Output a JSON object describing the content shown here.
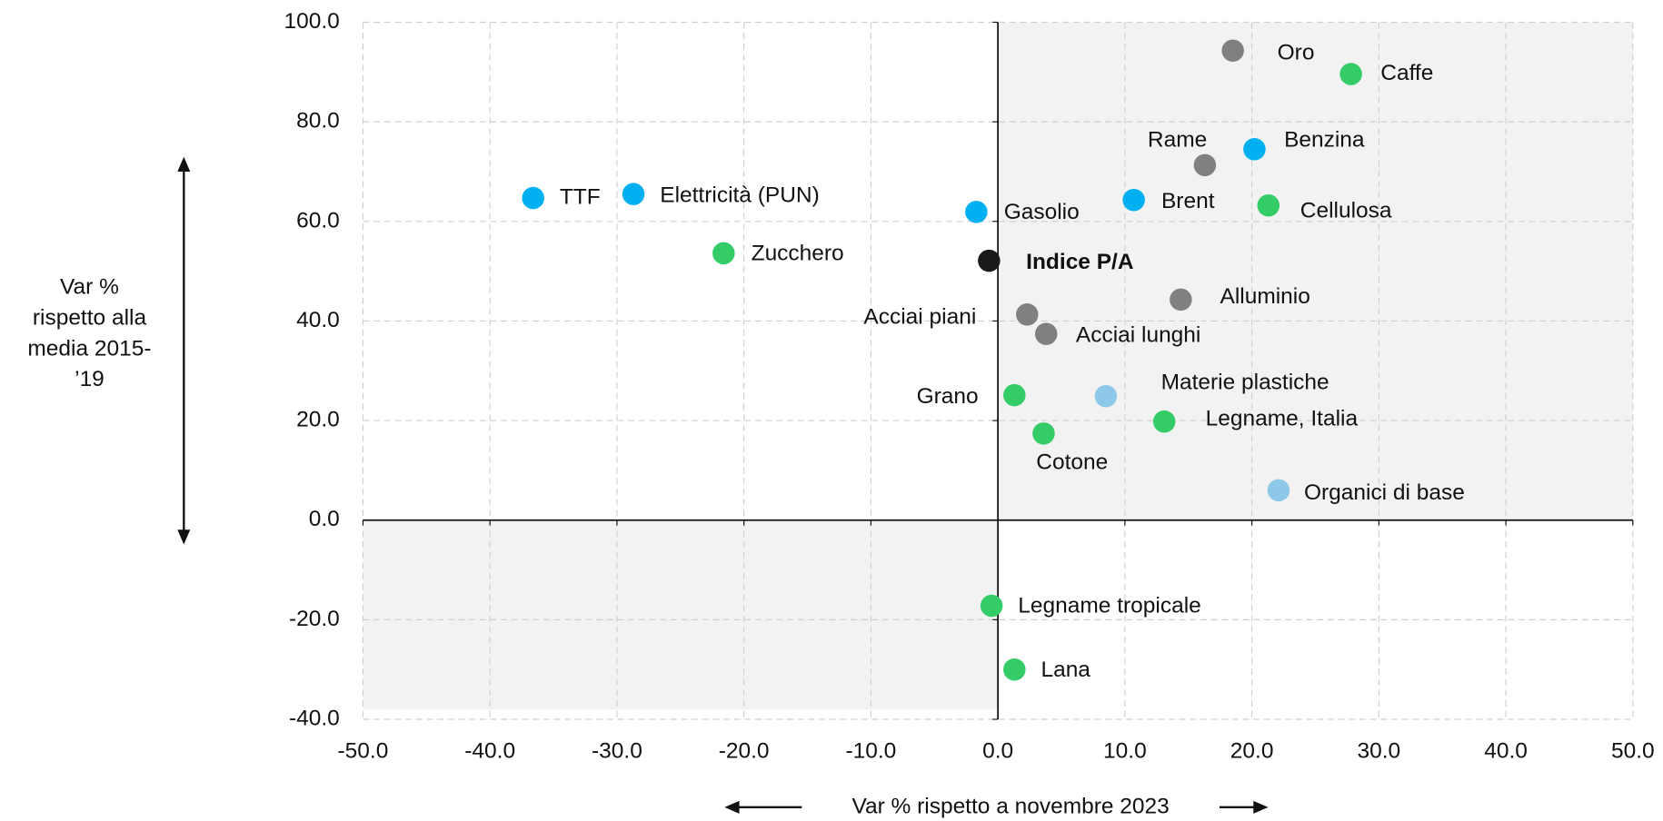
{
  "chart_data": {
    "type": "scatter",
    "xlabel": "Var % rispetto a novembre 2023",
    "ylabel": [
      "Var %",
      "rispetto alla",
      "media 2015-",
      "’19"
    ],
    "xlim": [
      -50,
      50
    ],
    "ylim": [
      -40,
      100
    ],
    "xticks": [
      {
        "value": -50,
        "label": "-50.0"
      },
      {
        "value": -40,
        "label": "-40.0"
      },
      {
        "value": -30,
        "label": "-30.0"
      },
      {
        "value": -20,
        "label": "-20.0"
      },
      {
        "value": -10,
        "label": "-10.0"
      },
      {
        "value": 0,
        "label": "0.0"
      },
      {
        "value": 10,
        "label": "10.0"
      },
      {
        "value": 20,
        "label": "20.0"
      },
      {
        "value": 30,
        "label": "30.0"
      },
      {
        "value": 40,
        "label": "40.0"
      },
      {
        "value": 50,
        "label": "50.0"
      }
    ],
    "yticks": [
      {
        "value": -40,
        "label": "-40.0"
      },
      {
        "value": -20,
        "label": "-20.0"
      },
      {
        "value": 0,
        "label": "0.0"
      },
      {
        "value": 20,
        "label": "20.0"
      },
      {
        "value": 40,
        "label": "40.0"
      },
      {
        "value": 60,
        "label": "60.0"
      },
      {
        "value": 80,
        "label": "80.0"
      },
      {
        "value": 100,
        "label": "100.0"
      }
    ],
    "grid": true,
    "series": [
      {
        "name": "Oro",
        "color": "#808080",
        "x": [
          18.5
        ],
        "values": [
          94.3
        ]
      },
      {
        "name": "Caffe",
        "color": "#33cc66",
        "x": [
          27.8
        ],
        "values": [
          89.6
        ]
      },
      {
        "name": "Rame",
        "color": "#808080",
        "x": [
          16.3
        ],
        "values": [
          71.3
        ]
      },
      {
        "name": "Benzina",
        "color": "#00b0f0",
        "x": [
          20.2
        ],
        "values": [
          74.5
        ]
      },
      {
        "name": "Brent",
        "color": "#00b0f0",
        "x": [
          10.7
        ],
        "values": [
          64.3
        ]
      },
      {
        "name": "Cellulosa",
        "color": "#33cc66",
        "x": [
          21.3
        ],
        "values": [
          63.2
        ]
      },
      {
        "name": "TTF",
        "color": "#00b0f0",
        "x": [
          -36.6
        ],
        "values": [
          64.7
        ]
      },
      {
        "name": "Elettricità (PUN)",
        "color": "#00b0f0",
        "x": [
          -28.7
        ],
        "values": [
          65.5
        ]
      },
      {
        "name": "Gasolio",
        "color": "#00b0f0",
        "x": [
          -1.7
        ],
        "values": [
          61.9
        ]
      },
      {
        "name": "Zucchero",
        "color": "#33cc66",
        "x": [
          -21.6
        ],
        "values": [
          53.6
        ]
      },
      {
        "name": "Indice P/A",
        "color": "#1a1a1a",
        "x": [
          -0.7
        ],
        "values": [
          52.1
        ]
      },
      {
        "name": "Alluminio",
        "color": "#808080",
        "x": [
          14.4
        ],
        "values": [
          44.3
        ]
      },
      {
        "name": "Acciai piani",
        "color": "#808080",
        "x": [
          2.3
        ],
        "values": [
          41.3
        ]
      },
      {
        "name": "Acciai lunghi",
        "color": "#808080",
        "x": [
          3.8
        ],
        "values": [
          37.4
        ]
      },
      {
        "name": "Grano",
        "color": "#33cc66",
        "x": [
          1.3
        ],
        "values": [
          25.1
        ]
      },
      {
        "name": "Materie plastiche",
        "color": "#8ec8e8",
        "x": [
          8.5
        ],
        "values": [
          24.9
        ]
      },
      {
        "name": "Legname, Italia",
        "color": "#33cc66",
        "x": [
          13.1
        ],
        "values": [
          19.8
        ]
      },
      {
        "name": "Cotone",
        "color": "#33cc66",
        "x": [
          3.6
        ],
        "values": [
          17.4
        ]
      },
      {
        "name": "Organici di base",
        "color": "#8ec8e8",
        "x": [
          22.1
        ],
        "values": [
          6.0
        ]
      },
      {
        "name": "Legname tropicale",
        "color": "#33cc66",
        "x": [
          -0.5
        ],
        "values": [
          -17.2
        ]
      },
      {
        "name": "Lana",
        "color": "#33cc66",
        "x": [
          1.3
        ],
        "values": [
          -30.0
        ]
      }
    ]
  }
}
